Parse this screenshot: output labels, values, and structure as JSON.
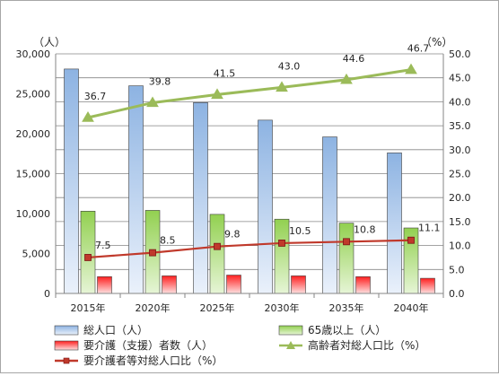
{
  "chart_data": {
    "type": "bar",
    "categories": [
      "2015年",
      "2020年",
      "2025年",
      "2030年",
      "2035年",
      "2040年"
    ],
    "y_left": {
      "unit": "（人）",
      "ylim": [
        0,
        30000
      ],
      "ticks": [
        "0",
        "5,000",
        "10,000",
        "15,000",
        "20,000",
        "25,000",
        "30,000"
      ]
    },
    "y_right": {
      "unit": "（%）",
      "ylim": [
        0,
        50
      ],
      "ticks": [
        "0.0",
        "5.0",
        "10.0",
        "15.0",
        "20.0",
        "25.0",
        "30.0",
        "35.0",
        "40.0",
        "45.0",
        "50.0"
      ]
    },
    "grid": true,
    "legend_position": "bottom",
    "series": [
      {
        "name": "総人口（人）",
        "kind": "bar",
        "axis": "left",
        "color": "#8db3e2",
        "values": [
          28100,
          26000,
          23900,
          21700,
          19600,
          17600
        ]
      },
      {
        "name": "65歳以上（人）",
        "kind": "bar",
        "axis": "left",
        "color": "#92d050",
        "values": [
          10300,
          10400,
          9900,
          9300,
          8800,
          8200
        ]
      },
      {
        "name": "要介護（支援）者数（人）",
        "kind": "bar",
        "axis": "left",
        "color": "#ff3b3b",
        "values": [
          2100,
          2200,
          2300,
          2200,
          2100,
          1900
        ]
      },
      {
        "name": "高齢者対総人口比（%）",
        "kind": "line",
        "axis": "right",
        "color": "#9bbb59",
        "marker": "triangle",
        "values": [
          36.7,
          39.8,
          41.5,
          43.0,
          44.6,
          46.7
        ],
        "labels": [
          "36.7",
          "39.8",
          "41.5",
          "43.0",
          "44.6",
          "46.7"
        ]
      },
      {
        "name": "要介護者等対総人口比（%）",
        "kind": "line",
        "axis": "right",
        "color": "#c0392b",
        "marker": "square",
        "values": [
          7.5,
          8.5,
          9.8,
          10.5,
          10.8,
          11.1
        ],
        "labels": [
          "7.5",
          "8.5",
          "9.8",
          "10.5",
          "10.8",
          "11.1"
        ]
      }
    ]
  }
}
